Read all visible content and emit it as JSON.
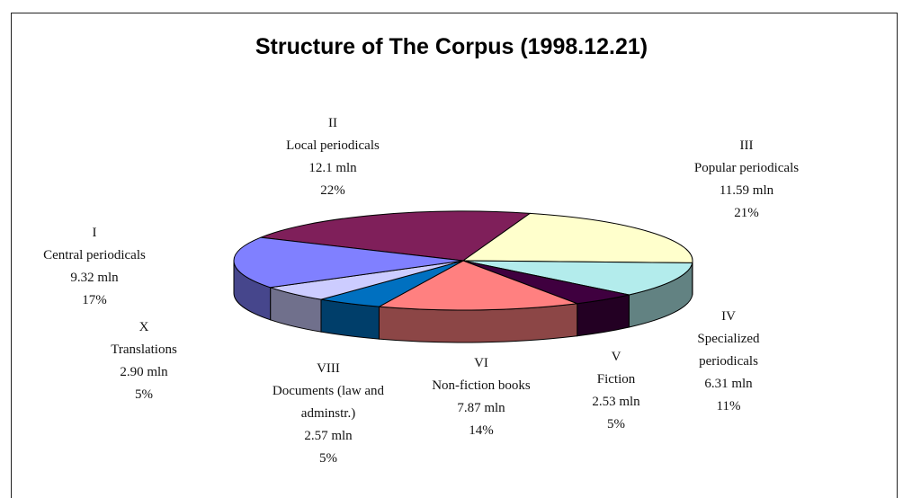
{
  "chart_data": {
    "type": "pie",
    "title": "Structure of The Corpus (1998.12.21)",
    "numerals": [
      "II",
      "III",
      "IV",
      "V",
      "VI",
      "VIII",
      "X",
      "I"
    ],
    "categories": [
      "Local periodicals",
      "Popular periodicals",
      "Specialized periodicals",
      "Fiction",
      "Non-fiction books",
      "Documents (law and adminstr.)",
      "Translations",
      "Central periodicals"
    ],
    "values": [
      12.1,
      11.59,
      6.31,
      2.53,
      7.87,
      2.57,
      2.9,
      9.32
    ],
    "value_labels": [
      "12.1 mln",
      "11.59 mln",
      "6.31 mln",
      "2.53 mln",
      "7.87 mln",
      "2.57 mln",
      "2.90 mln",
      "9.32 mln"
    ],
    "percents": [
      22,
      21,
      11,
      5,
      14,
      5,
      5,
      17
    ],
    "percent_labels": [
      "22%",
      "21%",
      "11%",
      "5%",
      "14%",
      "5%",
      "5%",
      "17%"
    ],
    "colors": [
      "#7f1f5a",
      "#ffffcc",
      "#b3ecec",
      "#3f003f",
      "#ff8080",
      "#0070c0",
      "#ccccff",
      "#8080ff"
    ]
  }
}
